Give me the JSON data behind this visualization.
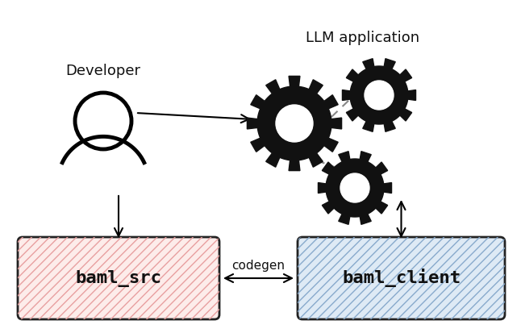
{
  "title": "LLM application",
  "developer_label": "Developer",
  "baml_src_label": "baml_src",
  "baml_client_label": "baml_client",
  "codegen_label": "codegen",
  "baml_src_color": "#fdecea",
  "baml_client_color": "#deeaf5",
  "baml_src_hatch_color": "#e8a0a0",
  "baml_client_hatch_color": "#88aacc",
  "background_color": "#ffffff",
  "text_color": "#111111",
  "gear_color": "#111111",
  "fig_width": 6.46,
  "fig_height": 4.08,
  "dpi": 100
}
